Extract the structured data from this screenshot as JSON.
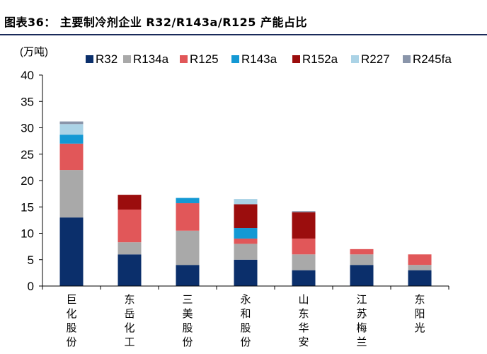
{
  "title": "图表36： 主要制冷剂企业 R32/R143a/R125 产能占比",
  "chart_data": {
    "type": "bar",
    "stacked": true,
    "title": "图表36： 主要制冷剂企业 R32/R143a/R125 产能占比",
    "unit_label": "(万吨)",
    "ylim": [
      0,
      40
    ],
    "yticks": [
      0,
      5,
      10,
      15,
      20,
      25,
      30,
      35,
      40
    ],
    "grid": false,
    "legend_position": "top",
    "categories": [
      "巨化股份",
      "东岳化工",
      "三美股份",
      "永和股份",
      "山东华安",
      "江苏梅兰",
      "东阳光"
    ],
    "series": [
      {
        "name": "R32",
        "color": "#0b2f6b",
        "values": [
          13,
          6,
          4,
          5,
          3,
          4,
          3
        ]
      },
      {
        "name": "R134a",
        "color": "#a9a9a9",
        "values": [
          9,
          2.3,
          6.5,
          3,
          3,
          2,
          1
        ]
      },
      {
        "name": "R125",
        "color": "#e15759",
        "values": [
          5,
          6.2,
          5.2,
          1,
          3,
          1,
          2
        ]
      },
      {
        "name": "R143a",
        "color": "#1499d4",
        "values": [
          1.7,
          0,
          1,
          2,
          0,
          0,
          0
        ]
      },
      {
        "name": "R152a",
        "color": "#9b0d0d",
        "values": [
          0,
          2.8,
          0,
          4.5,
          5,
          0,
          0
        ]
      },
      {
        "name": "R227",
        "color": "#abd3e6",
        "values": [
          2,
          0,
          0,
          1,
          0,
          0,
          0
        ]
      },
      {
        "name": "R245fa",
        "color": "#8a95aa",
        "values": [
          0.5,
          0,
          0,
          0,
          0.2,
          0,
          0
        ]
      }
    ]
  }
}
